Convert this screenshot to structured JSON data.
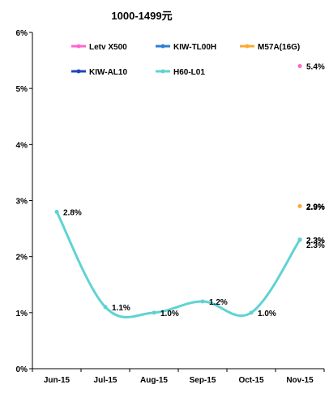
{
  "chart_data": {
    "type": "line",
    "title": "1000-1499元",
    "categories": [
      "Jun-15",
      "Jul-15",
      "Aug-15",
      "Sep-15",
      "Oct-15",
      "Nov-15"
    ],
    "ylim": [
      0,
      6
    ],
    "yticks": [
      "0%",
      "1%",
      "2%",
      "3%",
      "4%",
      "5%",
      "6%"
    ],
    "grid": false,
    "legend_position": "top",
    "series": [
      {
        "name": "Letv X500",
        "color": "#ff66cc",
        "values": [
          null,
          null,
          null,
          null,
          null,
          5.4
        ],
        "labels": [
          "",
          "",
          "",
          "",
          "",
          "5.4%"
        ]
      },
      {
        "name": "KIW-TL00H",
        "color": "#2a7fd4",
        "values": [
          null,
          null,
          null,
          null,
          null,
          2.3
        ],
        "labels": [
          "",
          "",
          "",
          "",
          "",
          "2.3%"
        ]
      },
      {
        "name": "M57A(16G)",
        "color": "#ffa733",
        "values": [
          null,
          null,
          null,
          null,
          null,
          2.9
        ],
        "labels": [
          "",
          "",
          "",
          "",
          "",
          "2.9%"
        ]
      },
      {
        "name": "KIW-AL10",
        "color": "#2244bb",
        "values": [
          null,
          null,
          null,
          null,
          null,
          2.3
        ],
        "labels": [
          "",
          "",
          "",
          "",
          "",
          "2.3%"
        ]
      },
      {
        "name": "H60-L01",
        "color": "#5fd3d3",
        "values": [
          2.8,
          1.1,
          1.0,
          1.2,
          1.0,
          2.3
        ],
        "labels": [
          "2.8%",
          "1.1%",
          "1.0%",
          "1.2%",
          "1.0%",
          "2.3%"
        ]
      }
    ],
    "extra_labels": [
      "2.9%",
      "2.9%"
    ]
  }
}
